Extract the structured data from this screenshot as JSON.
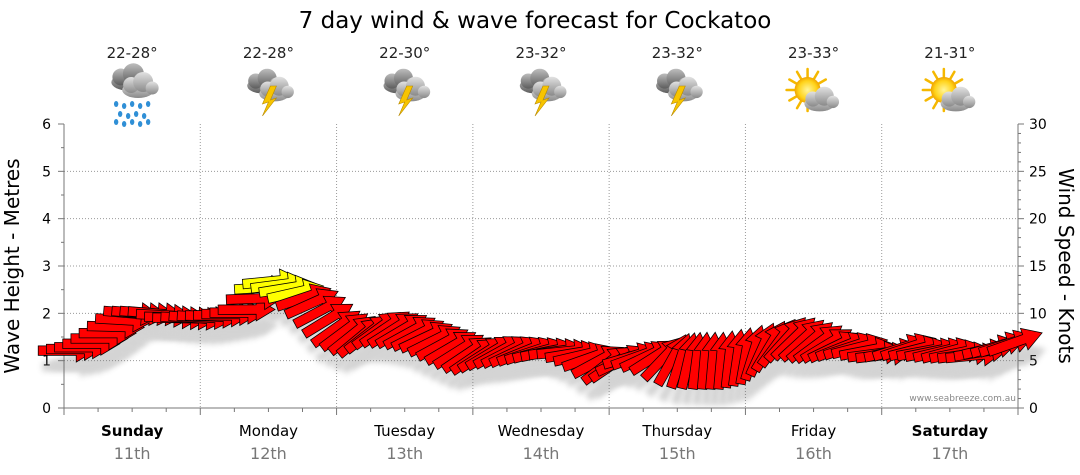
{
  "chart_data": {
    "type": "line",
    "title": "7 day wind & wave forecast for Cockatoo",
    "ylabel_left": "Wave Height - Metres",
    "ylabel_right": "Wind Speed - Knots",
    "ylim_left": [
      0,
      6
    ],
    "ylim_right": [
      0,
      30
    ],
    "yticks_left": [
      "0",
      "1",
      "2",
      "3",
      "4",
      "5",
      "6"
    ],
    "yticks_right": [
      "0",
      "5",
      "10",
      "15",
      "20",
      "25",
      "30"
    ],
    "credit": "www.seabreeze.com.au",
    "days": [
      {
        "name": "Sunday",
        "date": "11th",
        "temp": "22-28°",
        "weather": "rain",
        "bold": true
      },
      {
        "name": "Monday",
        "date": "12th",
        "temp": "22-28°",
        "weather": "storm",
        "bold": false
      },
      {
        "name": "Tuesday",
        "date": "13th",
        "temp": "22-30°",
        "weather": "storm",
        "bold": false
      },
      {
        "name": "Wednesday",
        "date": "14th",
        "temp": "23-32°",
        "weather": "storm",
        "bold": false
      },
      {
        "name": "Thursday",
        "date": "15th",
        "temp": "23-32°",
        "weather": "storm",
        "bold": false
      },
      {
        "name": "Friday",
        "date": "16th",
        "temp": "23-33°",
        "weather": "partly-cloudy",
        "bold": false
      },
      {
        "name": "Saturday",
        "date": "17th",
        "temp": "21-31°",
        "weather": "partly-cloudy",
        "bold": true
      }
    ],
    "wind": {
      "name": "Wind speed & direction",
      "time_days": [
        0.0,
        0.17,
        0.33,
        0.5,
        0.67,
        0.83,
        1.0,
        1.17,
        1.33,
        1.5,
        1.67,
        1.83,
        2.0,
        2.17,
        2.33,
        2.5,
        2.67,
        2.83,
        3.0,
        3.17,
        3.33,
        3.5,
        3.67,
        3.83,
        4.0,
        4.17,
        4.33,
        4.5,
        4.67,
        4.83,
        5.0,
        5.17,
        5.33,
        5.5,
        5.67,
        5.83,
        6.0,
        6.17,
        6.33,
        6.5,
        6.67,
        6.83,
        7.0
      ],
      "knots": [
        6,
        6.5,
        8,
        10,
        10,
        9.5,
        9.5,
        9.8,
        10.2,
        13.5,
        12.5,
        11,
        8.5,
        7.5,
        8.5,
        8.2,
        7.5,
        6.5,
        5.5,
        6,
        6,
        6,
        6,
        5.5,
        4.5,
        5.5,
        5.5,
        5,
        5,
        5,
        5.5,
        6.5,
        7.5,
        7,
        6.5,
        6.5,
        5.5,
        6.5,
        6,
        6,
        5.5,
        6.5,
        7
      ],
      "angle_deg": [
        180,
        180,
        180,
        185,
        185,
        180,
        185,
        180,
        180,
        175,
        170,
        155,
        145,
        140,
        145,
        150,
        155,
        150,
        145,
        150,
        155,
        165,
        175,
        165,
        140,
        165,
        150,
        110,
        95,
        95,
        100,
        120,
        135,
        140,
        155,
        165,
        175,
        160,
        170,
        165,
        175,
        165,
        160
      ],
      "strong_threshold_knots": 12
    }
  }
}
